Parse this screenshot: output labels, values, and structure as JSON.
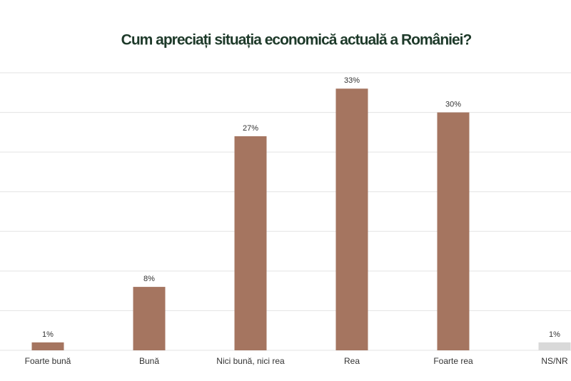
{
  "chart_data": {
    "type": "bar",
    "title": "Cum apreciați situația economică actuală a României?",
    "categories": [
      "Foarte bună",
      "Bună",
      "Nici bună, nici rea",
      "Rea",
      "Foarte rea",
      "NS/NR"
    ],
    "values": [
      1,
      8,
      27,
      33,
      30,
      1
    ],
    "value_labels": [
      "1%",
      "8%",
      "27%",
      "33%",
      "30%",
      "1%"
    ],
    "colors": [
      "#a57560",
      "#a57560",
      "#a57560",
      "#a57560",
      "#a57560",
      "#d9d9d9"
    ],
    "ylim": [
      0,
      35
    ],
    "yticks": [
      0,
      5,
      10,
      15,
      20,
      25,
      30,
      35
    ],
    "grid": true
  }
}
